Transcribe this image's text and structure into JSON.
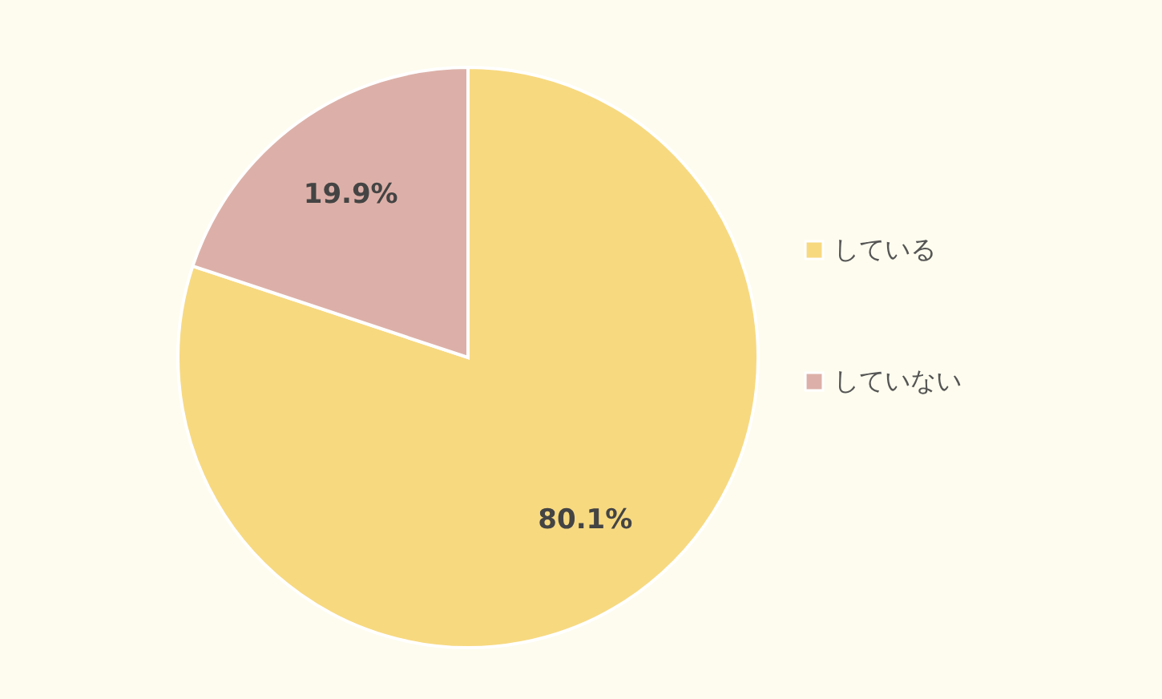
{
  "chart_data": {
    "type": "pie",
    "categories": [
      "している",
      "していない"
    ],
    "values": [
      80.1,
      19.9
    ],
    "colors": [
      "#f7d980",
      "#dcb0a8"
    ],
    "value_labels": [
      "80.1%",
      "19.9%"
    ],
    "legend": "right"
  }
}
